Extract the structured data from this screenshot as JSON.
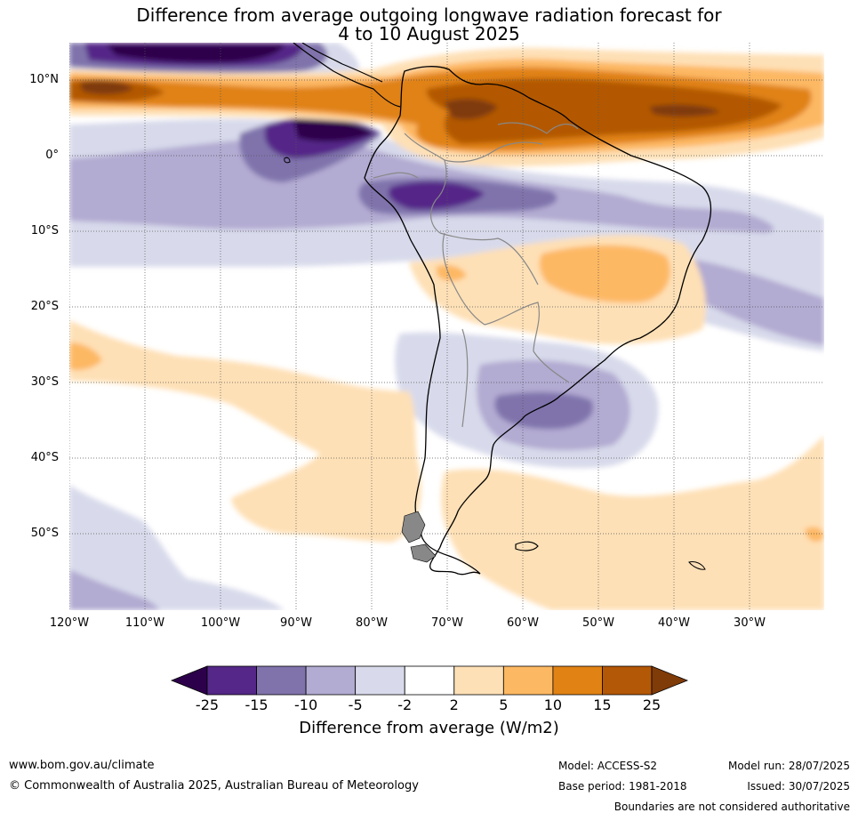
{
  "title": {
    "line1": "Difference from average outgoing longwave radiation forecast for",
    "line2": "4 to 10 August 2025"
  },
  "lat_labels": [
    "10°N",
    "0°",
    "10°S",
    "20°S",
    "30°S",
    "40°S",
    "50°S"
  ],
  "lon_labels": [
    "120°W",
    "110°W",
    "100°W",
    "90°W",
    "80°W",
    "70°W",
    "60°W",
    "50°W",
    "40°W",
    "30°W"
  ],
  "colorbar": {
    "ticks": [
      "-25",
      "-15",
      "-10",
      "-5",
      "-2",
      "2",
      "5",
      "10",
      "15",
      "25"
    ],
    "colors": [
      "#2d004b",
      "#542788",
      "#8073ac",
      "#b2abd2",
      "#d8daeb",
      "#ffffff",
      "#fee0b6",
      "#fdb863",
      "#e08214",
      "#b35806",
      "#7f3b08"
    ],
    "label": "Difference from average (W/m2)"
  },
  "footer": {
    "url": "www.bom.gov.au/climate",
    "copyright": "© Commonwealth of Australia 2025, Australian Bureau of Meteorology",
    "model": "Model: ACCESS-S2",
    "model_run": "Model run: 28/07/2025",
    "base_period": "Base period: 1981-2018",
    "issued": "Issued: 30/07/2025",
    "disclaimer": "Boundaries are not considered authoritative"
  }
}
